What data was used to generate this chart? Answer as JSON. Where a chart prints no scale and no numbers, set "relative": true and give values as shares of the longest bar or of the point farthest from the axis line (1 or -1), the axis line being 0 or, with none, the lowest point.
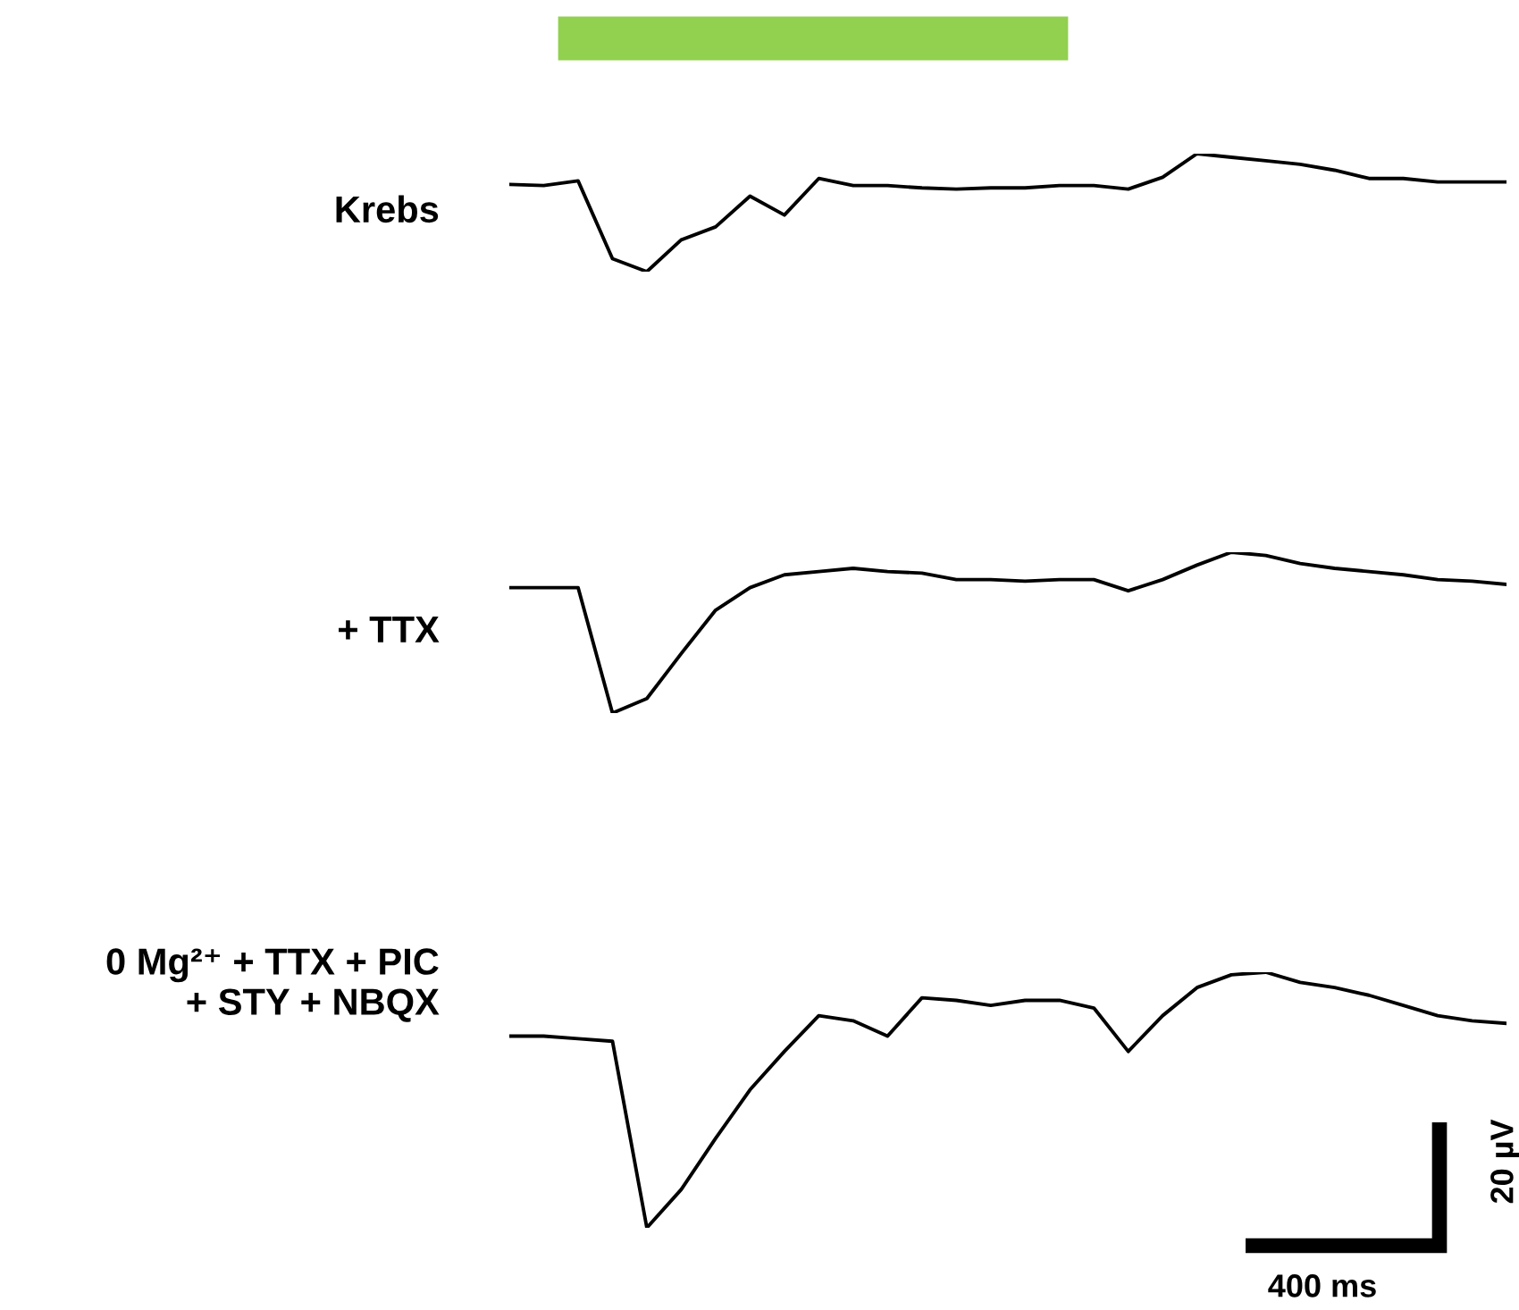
{
  "chart_data": [
    {
      "type": "line",
      "relative": true,
      "ylabel": "Krebs",
      "categories": [
        null,
        null,
        null,
        null,
        null,
        null,
        null,
        null,
        null,
        null,
        null,
        null,
        null,
        null,
        null,
        null,
        null,
        null,
        null,
        null,
        null,
        null,
        null,
        null,
        null,
        null,
        null,
        null,
        null,
        null
      ],
      "series": [
        {
          "color": "#000000",
          "values": [
            0.74,
            0.73,
            0.77,
            0.11,
            0,
            0.27,
            0.38,
            0.64,
            0.48,
            0.79,
            0.73,
            0.73,
            0.71,
            0.7,
            0.71,
            0.71,
            0.73,
            0.73,
            0.7,
            0.8,
            1,
            0.97,
            0.94,
            0.91,
            0.86,
            0.79,
            0.79,
            0.76,
            0.76,
            0.76
          ]
        }
      ]
    },
    {
      "type": "line",
      "relative": true,
      "ylabel": "+ TTX",
      "categories": [
        null,
        null,
        null,
        null,
        null,
        null,
        null,
        null,
        null,
        null,
        null,
        null,
        null,
        null,
        null,
        null,
        null,
        null,
        null,
        null,
        null,
        null,
        null,
        null,
        null,
        null,
        null,
        null,
        null,
        null
      ],
      "series": [
        {
          "color": "#000000",
          "values": [
            0.78,
            0.78,
            0.78,
            0,
            0.09,
            0.37,
            0.64,
            0.78,
            0.86,
            0.88,
            0.9,
            0.88,
            0.87,
            0.83,
            0.83,
            0.82,
            0.83,
            0.83,
            0.76,
            0.83,
            0.92,
            1,
            0.98,
            0.93,
            0.9,
            0.88,
            0.86,
            0.83,
            0.82,
            0.8
          ]
        }
      ]
    },
    {
      "type": "line",
      "relative": true,
      "ylabel": "0 Mg²⁺ + TTX + PIC\n+ STY + NBQX",
      "annotations": [
        "20 µV",
        "400 ms"
      ],
      "categories": [
        null,
        null,
        null,
        null,
        null,
        null,
        null,
        null,
        null,
        null,
        null,
        null,
        null,
        null,
        null,
        null,
        null,
        null,
        null,
        null,
        null,
        null,
        null,
        null,
        null,
        null,
        null,
        null,
        null,
        null
      ],
      "series": [
        {
          "color": "#000000",
          "values": [
            0.75,
            0.75,
            0.74,
            0.73,
            0,
            0.15,
            0.35,
            0.54,
            0.69,
            0.83,
            0.81,
            0.75,
            0.9,
            0.89,
            0.87,
            0.89,
            0.89,
            0.86,
            0.69,
            0.83,
            0.94,
            0.99,
            1,
            0.96,
            0.94,
            0.91,
            0.87,
            0.83,
            0.81,
            0.8
          ]
        }
      ]
    }
  ]
}
